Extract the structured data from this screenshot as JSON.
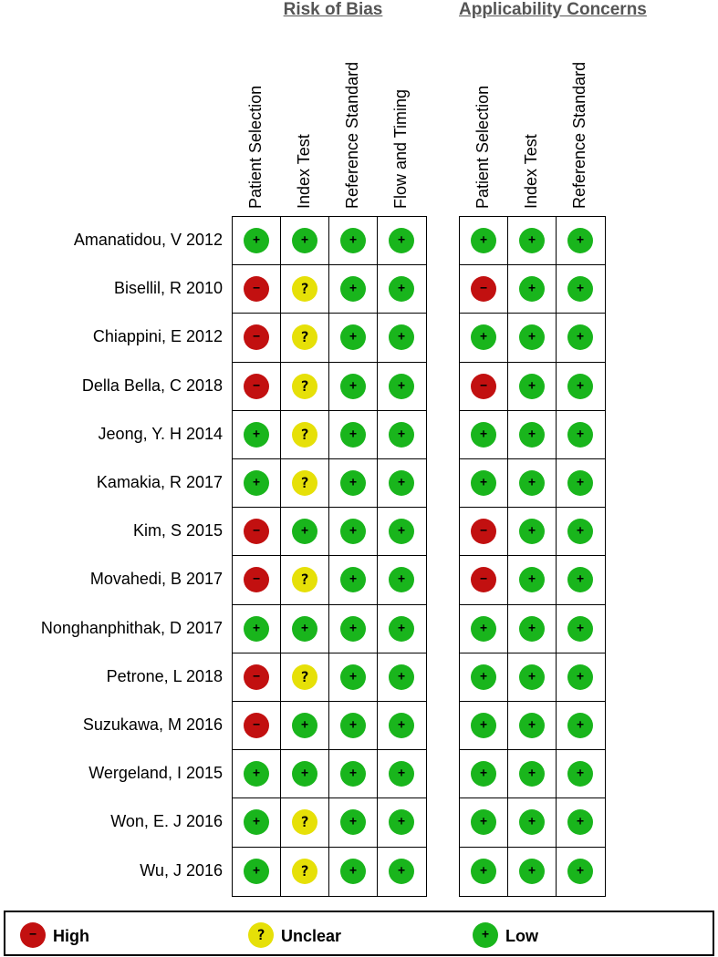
{
  "chart_data": {
    "type": "table",
    "groups": [
      {
        "title": "Risk of Bias",
        "columns": [
          "Patient Selection",
          "Index Test",
          "Reference Standard",
          "Flow and Timing"
        ]
      },
      {
        "title": "Applicability Concerns",
        "columns": [
          "Patient Selection",
          "Index Test",
          "Reference Standard"
        ]
      }
    ],
    "rows": [
      {
        "study": "Amanatidou, V 2012",
        "bias": [
          "low",
          "low",
          "low",
          "low"
        ],
        "applicability": [
          "low",
          "low",
          "low"
        ]
      },
      {
        "study": "Bisellil, R 2010",
        "bias": [
          "high",
          "unclear",
          "low",
          "low"
        ],
        "applicability": [
          "high",
          "low",
          "low"
        ]
      },
      {
        "study": "Chiappini, E 2012",
        "bias": [
          "high",
          "unclear",
          "low",
          "low"
        ],
        "applicability": [
          "low",
          "low",
          "low"
        ]
      },
      {
        "study": "Della Bella, C 2018",
        "bias": [
          "high",
          "unclear",
          "low",
          "low"
        ],
        "applicability": [
          "high",
          "low",
          "low"
        ]
      },
      {
        "study": "Jeong, Y. H 2014",
        "bias": [
          "low",
          "unclear",
          "low",
          "low"
        ],
        "applicability": [
          "low",
          "low",
          "low"
        ]
      },
      {
        "study": "Kamakia, R 2017",
        "bias": [
          "low",
          "unclear",
          "low",
          "low"
        ],
        "applicability": [
          "low",
          "low",
          "low"
        ]
      },
      {
        "study": "Kim, S 2015",
        "bias": [
          "high",
          "low",
          "low",
          "low"
        ],
        "applicability": [
          "high",
          "low",
          "low"
        ]
      },
      {
        "study": "Movahedi, B 2017",
        "bias": [
          "high",
          "unclear",
          "low",
          "low"
        ],
        "applicability": [
          "high",
          "low",
          "low"
        ]
      },
      {
        "study": "Nonghanphithak, D 2017",
        "bias": [
          "low",
          "low",
          "low",
          "low"
        ],
        "applicability": [
          "low",
          "low",
          "low"
        ]
      },
      {
        "study": "Petrone, L 2018",
        "bias": [
          "high",
          "unclear",
          "low",
          "low"
        ],
        "applicability": [
          "low",
          "low",
          "low"
        ]
      },
      {
        "study": "Suzukawa, M 2016",
        "bias": [
          "high",
          "low",
          "low",
          "low"
        ],
        "applicability": [
          "low",
          "low",
          "low"
        ]
      },
      {
        "study": "Wergeland, I 2015",
        "bias": [
          "low",
          "low",
          "low",
          "low"
        ],
        "applicability": [
          "low",
          "low",
          "low"
        ]
      },
      {
        "study": "Won, E. J 2016",
        "bias": [
          "low",
          "unclear",
          "low",
          "low"
        ],
        "applicability": [
          "low",
          "low",
          "low"
        ]
      },
      {
        "study": "Wu, J 2016",
        "bias": [
          "low",
          "unclear",
          "low",
          "low"
        ],
        "applicability": [
          "low",
          "low",
          "low"
        ]
      }
    ],
    "symbols": {
      "low": "+",
      "high": "−",
      "unclear": "?"
    },
    "colors": {
      "low": "#19b51c",
      "high": "#c21010",
      "unclear": "#e6e008"
    },
    "legend": [
      {
        "key": "high",
        "label": "High"
      },
      {
        "key": "unclear",
        "label": "Unclear"
      },
      {
        "key": "low",
        "label": "Low"
      }
    ]
  }
}
